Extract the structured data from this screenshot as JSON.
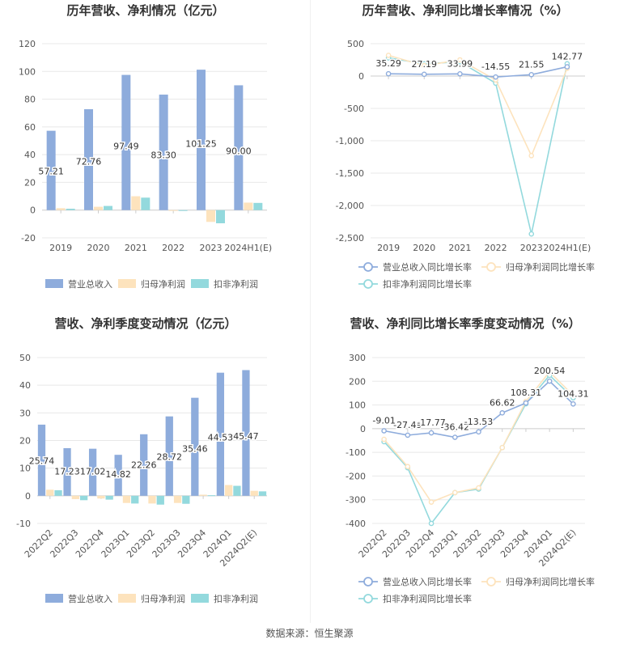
{
  "footer": {
    "source": "数据来源：恒生聚源"
  },
  "colors": {
    "revenue": "#8eacdc",
    "net_profit": "#fde3bd",
    "deducted_profit": "#93d9dd",
    "grid": "#e8e8e8",
    "axis_text": "#555555"
  },
  "chart_data": [
    {
      "id": "annual-amount",
      "type": "bar",
      "title": "历年营收、净利情况（亿元）",
      "categories": [
        "2019",
        "2020",
        "2021",
        "2022",
        "2023",
        "2024H1(E)"
      ],
      "ylim": [
        -20,
        120
      ],
      "yticks": [
        -20,
        0,
        20,
        40,
        60,
        80,
        100,
        120
      ],
      "grid": true,
      "legend_position": "bottom",
      "series": [
        {
          "name": "营业总收入",
          "values": [
            57.21,
            72.76,
            97.49,
            83.3,
            101.25,
            90.0
          ],
          "labels": [
            "57.21",
            "72.76",
            "97.49",
            "83.30",
            "101.25",
            "90.00"
          ]
        },
        {
          "name": "归母净利润",
          "values": [
            1.4,
            2.4,
            10.0,
            -0.3,
            -8.5,
            5.4
          ]
        },
        {
          "name": "扣非净利润",
          "values": [
            1.0,
            3.0,
            9.0,
            -0.6,
            -9.5,
            5.2
          ]
        }
      ]
    },
    {
      "id": "annual-growth",
      "type": "line",
      "title": "历年营收、净利同比增长率情况（%）",
      "categories": [
        "2019",
        "2020",
        "2021",
        "2022",
        "2023",
        "2024H1(E)"
      ],
      "ylim": [
        -2500,
        500
      ],
      "yticks": [
        -2500,
        -2000,
        -1500,
        -1000,
        -500,
        0,
        500
      ],
      "ytick_labels": [
        "-2,500",
        "-2,000",
        "-1,500",
        "-1,000",
        "-500",
        "0",
        "500"
      ],
      "grid": true,
      "legend_position": "bottom",
      "series": [
        {
          "name": "营业总收入同比增长率",
          "values": [
            35.29,
            27.19,
            33.99,
            -14.55,
            21.55,
            142.77
          ],
          "labels": [
            "35.29",
            "27.19",
            "33.99",
            "-14.55",
            "21.55",
            "142.77"
          ]
        },
        {
          "name": "归母净利润同比增长率",
          "values": [
            320,
            160,
            250,
            -60,
            -1230,
            120
          ]
        },
        {
          "name": "扣非净利润同比增长率",
          "values": [
            280,
            190,
            220,
            -110,
            -2440,
            190
          ]
        }
      ]
    },
    {
      "id": "quarterly-amount",
      "type": "bar",
      "title": "营收、净利季度变动情况（亿元）",
      "categories": [
        "2022Q2",
        "2022Q3",
        "2022Q4",
        "2023Q1",
        "2023Q2",
        "2023Q3",
        "2023Q4",
        "2024Q1",
        "2024Q2(E)"
      ],
      "ylim": [
        -10,
        50
      ],
      "yticks": [
        -10,
        0,
        10,
        20,
        30,
        40,
        50
      ],
      "grid": true,
      "legend_position": "bottom",
      "series": [
        {
          "name": "营业总收入",
          "values": [
            25.74,
            17.23,
            17.02,
            14.82,
            22.26,
            28.72,
            35.46,
            44.53,
            45.47
          ],
          "labels": [
            "25.74",
            "17.23",
            "17.02",
            "14.82",
            "22.26",
            "28.72",
            "35.46",
            "44.53",
            "45.47"
          ]
        },
        {
          "name": "归母净利润",
          "values": [
            2.2,
            -1.2,
            -1.0,
            -2.6,
            -2.8,
            -2.6,
            0.4,
            3.9,
            1.8
          ]
        },
        {
          "name": "扣非净利润",
          "values": [
            2.0,
            -1.6,
            -1.4,
            -2.8,
            -3.2,
            -2.9,
            0.2,
            3.6,
            1.6
          ]
        }
      ]
    },
    {
      "id": "quarterly-growth",
      "type": "line",
      "title": "营收、净利同比增长率季度变动情况（%）",
      "categories": [
        "2022Q2",
        "2022Q3",
        "2022Q4",
        "2023Q1",
        "2023Q2",
        "2023Q3",
        "2023Q4",
        "2024Q1",
        "2024Q2(E)"
      ],
      "ylim": [
        -400,
        300
      ],
      "yticks": [
        -400,
        -300,
        -200,
        -100,
        0,
        100,
        200,
        300
      ],
      "grid": true,
      "legend_position": "bottom",
      "series": [
        {
          "name": "营业总收入同比增长率",
          "values": [
            -9.01,
            -27.49,
            -17.77,
            -36.42,
            -13.53,
            66.62,
            108.31,
            200.54,
            104.31
          ],
          "labels": [
            "-9.01",
            "-27.49",
            "-17.77",
            "-36.42",
            "-13.53",
            "66.62",
            "108.31",
            "200.54",
            "104.31"
          ]
        },
        {
          "name": "归母净利润同比增长率",
          "values": [
            -45,
            -160,
            -310,
            -270,
            -250,
            -80,
            115,
            240,
            140
          ]
        },
        {
          "name": "扣非净利润同比增长率",
          "values": [
            -55,
            -165,
            -400,
            -270,
            -255,
            -80,
            105,
            225,
            130
          ]
        }
      ]
    }
  ]
}
